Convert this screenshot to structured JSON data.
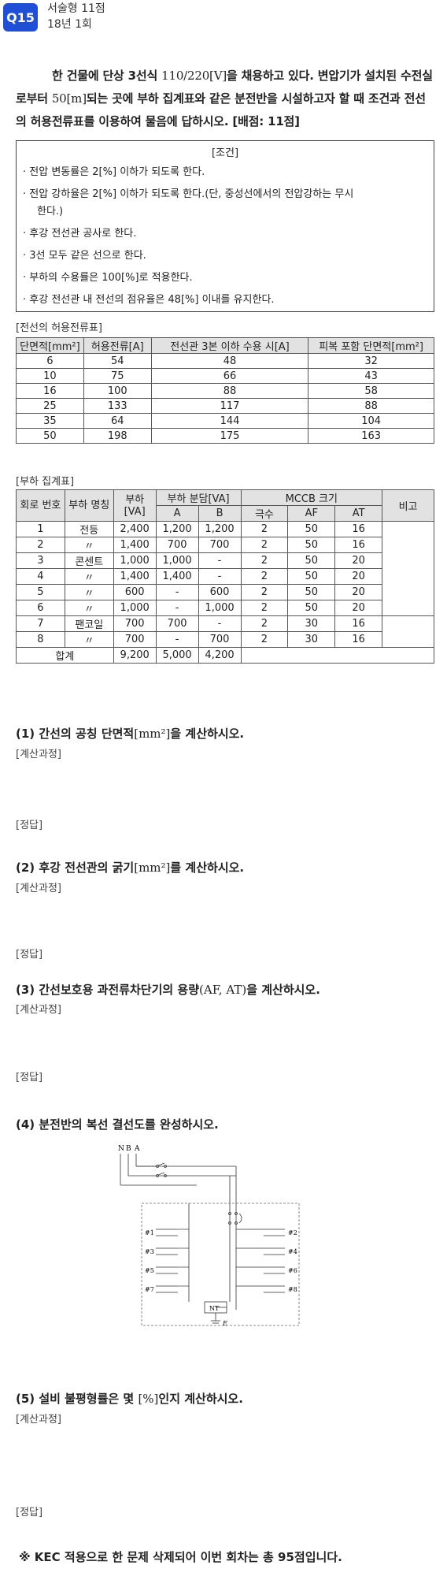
{
  "header": {
    "badge": "Q15",
    "type_points": "서술형 11점",
    "exam": "18년 1회"
  },
  "intro": {
    "part1": "한 건물에 단상 3선식 ",
    "voltage": "110/220[V]",
    "part2": "을 채용하고 있다. 변압기가 설치된 수전실로부터 ",
    "distance": "50[m]",
    "part3": "되는 곳에 부하 집계표와 같은 분전반을 시설하고자 할 때 조건과 전선의 허용전류표를 이용하여 물음에 답하시오. [배점: 11점]"
  },
  "conditions": {
    "title": "[조건]",
    "items": [
      "· 전압 변동률은 2[%] 이하가 되도록 한다.",
      "· 전압 강하율은 2[%] 이하가 되도록 한다.(단, 중성선에서의 전압강하는 무시",
      "· 후강 전선관 공사로 한다.",
      "· 3선 모두 같은 선으로 한다.",
      "· 부하의 수용률은 100[%]로 적용한다.",
      "· 후강 전선관 내 전선의 점유율은 48[%] 이내를 유지한다."
    ],
    "item2_cont": "한다.)"
  },
  "ampacity": {
    "label": "[전선의 허용전류표]",
    "headers": [
      "단면적[mm²]",
      "허용전류[A]",
      "전선관 3본 이하 수용 시[A]",
      "피복 포함 단면적[mm²]"
    ],
    "rows": [
      [
        "6",
        "54",
        "48",
        "32"
      ],
      [
        "10",
        "75",
        "66",
        "43"
      ],
      [
        "16",
        "100",
        "88",
        "58"
      ],
      [
        "25",
        "133",
        "117",
        "88"
      ],
      [
        "35",
        "64",
        "144",
        "104"
      ],
      [
        "50",
        "198",
        "175",
        "163"
      ]
    ]
  },
  "load": {
    "label": "[부하 집계표]",
    "h_circuit": "회로 번호",
    "h_name": "부하 명칭",
    "h_load": "부하 [VA]",
    "h_share": "부하 분담[VA]",
    "h_mccb": "MCCB 크기",
    "h_note": "비고",
    "h_a": "A",
    "h_b": "B",
    "h_poles": "극수",
    "h_af": "AF",
    "h_at": "AT",
    "rows": [
      [
        "1",
        "전등",
        "2,400",
        "1,200",
        "1,200",
        "2",
        "50",
        "16"
      ],
      [
        "2",
        "〃",
        "1,400",
        "700",
        "700",
        "2",
        "50",
        "16"
      ],
      [
        "3",
        "콘센트",
        "1,000",
        "1,000",
        "-",
        "2",
        "50",
        "20"
      ],
      [
        "4",
        "〃",
        "1,400",
        "1,400",
        "-",
        "2",
        "50",
        "20"
      ],
      [
        "5",
        "〃",
        "600",
        "-",
        "600",
        "2",
        "50",
        "20"
      ],
      [
        "6",
        "〃",
        "1,000",
        "-",
        "1,000",
        "2",
        "50",
        "20"
      ],
      [
        "7",
        "팬코일",
        "700",
        "700",
        "-",
        "2",
        "30",
        "16"
      ],
      [
        "8",
        "〃",
        "700",
        "-",
        "700",
        "2",
        "30",
        "16"
      ]
    ],
    "total": [
      "합계",
      "9,200",
      "5,000",
      "4,200"
    ]
  },
  "questions": [
    {
      "q": "(1) 간선의 공칭 단면적",
      "unit": "[mm²]",
      "tail": "을 계산하시오."
    },
    {
      "q": "(2) 후강 전선관의 굵기",
      "unit": "[mm²]",
      "tail": "를 계산하시오."
    },
    {
      "q": "(3) 간선보호용 과전류차단기의 용량",
      "unit": "(AF, AT)",
      "tail": "을 계산하시오."
    },
    {
      "q": "(4) 분전반의 복선 결선도를 완성하시오.",
      "unit": "",
      "tail": ""
    },
    {
      "q": "(5) 설비 불평형률은 몇 ",
      "unit": "[%]",
      "tail": "인지 계산하시오."
    }
  ],
  "labels": {
    "calc": "[계산과정]",
    "answer": "[정답]"
  },
  "diagram": {
    "phase_labels": [
      "N",
      "B",
      "A"
    ],
    "left_circuits": [
      "#1",
      "#3",
      "#5",
      "#7"
    ],
    "right_circuits": [
      "#2",
      "#4",
      "#6",
      "#8"
    ],
    "terminal": "NT",
    "ground": "E"
  },
  "footer": "※ KEC 적용으로 한 문제 삭제되어 이번 회차는 총 95점입니다."
}
